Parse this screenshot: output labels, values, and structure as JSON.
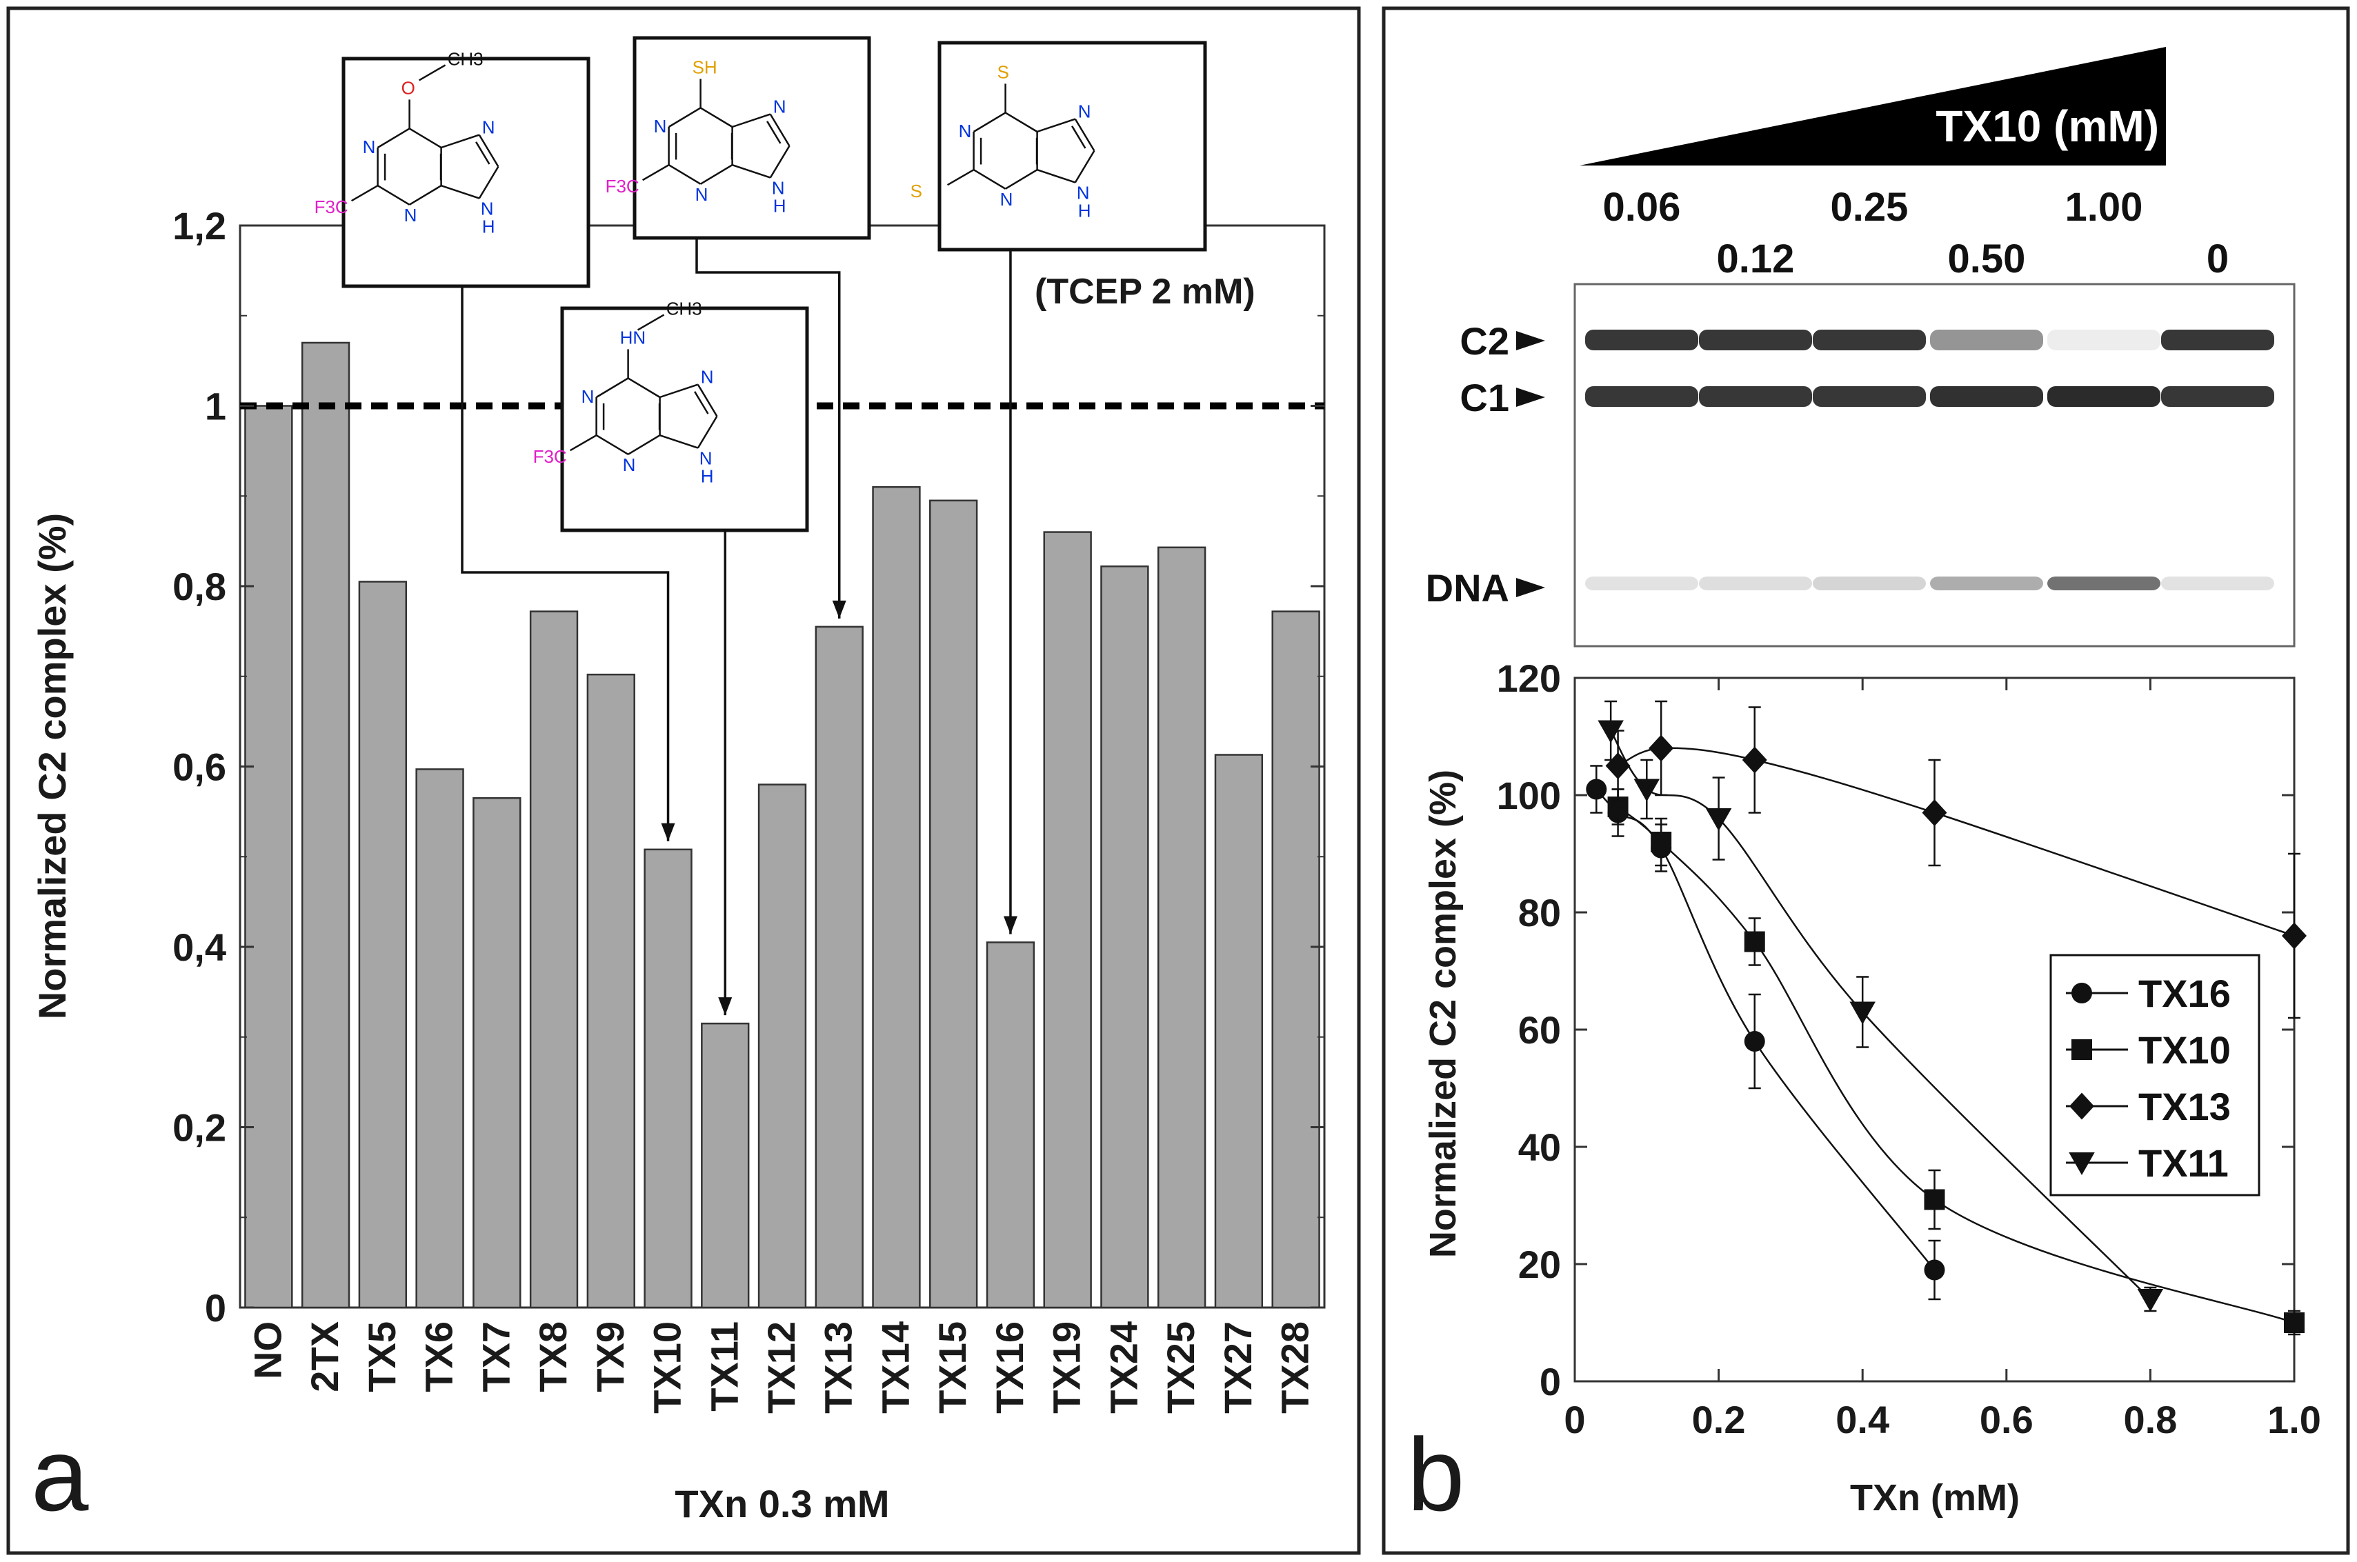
{
  "chart_data": [
    {
      "type": "bar",
      "panel_label": "a",
      "categories": [
        "NO",
        "2TX",
        "TX5",
        "TX6",
        "TX7",
        "TX8",
        "TX9",
        "TX10",
        "TX11",
        "TX12",
        "TX13",
        "TX14",
        "TX15",
        "TX16",
        "TX19",
        "TX24",
        "TX25",
        "TX27",
        "TX28"
      ],
      "values": [
        1.0,
        1.07,
        0.805,
        0.597,
        0.565,
        0.772,
        0.702,
        0.508,
        0.315,
        0.58,
        0.755,
        0.91,
        0.895,
        0.405,
        0.86,
        0.822,
        0.843,
        0.613,
        0.772
      ],
      "xlabel": "TXn 0.3 mM",
      "ylabel": "Normalized C2 complex (%)",
      "ylim": [
        0,
        1.2
      ],
      "yticks": [
        "0",
        "0,2",
        "0,4",
        "0,6",
        "0,8",
        "1",
        "1,2"
      ],
      "reference_line": 1,
      "annotation": "(TCEP 2 mM)",
      "bar_color": "#a6a6a6",
      "structures": [
        {
          "target": "TX10",
          "top": "O",
          "top_sub": "CH3",
          "r2": "F3C"
        },
        {
          "target": "TX11",
          "top": "HN",
          "top_sub": "CH3",
          "r2": "F3C"
        },
        {
          "target": "TX13",
          "top": "SH",
          "r2": "F3C"
        },
        {
          "target": "TX16",
          "top": "S",
          "r2": "S"
        }
      ]
    },
    {
      "type": "gel",
      "title": "TX10 (mM)",
      "concentrations_top": [
        "0.06",
        "0.25",
        "1.00"
      ],
      "concentrations_bottom": [
        "0.12",
        "0.50",
        "0"
      ],
      "bands": [
        "C2",
        "C1",
        "DNA"
      ],
      "c2_intensity": [
        0.85,
        0.85,
        0.85,
        0.45,
        0.08,
        0.85
      ],
      "c1_intensity": [
        0.85,
        0.85,
        0.85,
        0.88,
        0.9,
        0.85
      ],
      "dna_intensity": [
        0.12,
        0.14,
        0.18,
        0.35,
        0.6,
        0.12
      ]
    },
    {
      "type": "line",
      "panel_label": "b",
      "xlabel": "TXn (mM)",
      "ylabel": "Normalized C2 complex (%)",
      "xlim": [
        0,
        1.0
      ],
      "ylim": [
        0,
        120
      ],
      "xticks": [
        "0",
        "0.2",
        "0.4",
        "0.6",
        "0.8",
        "1.0"
      ],
      "yticks": [
        "0",
        "20",
        "40",
        "60",
        "80",
        "100",
        "120"
      ],
      "legend_position": "center-right",
      "series": [
        {
          "name": "TX16",
          "marker": "circle",
          "x": [
            0.03,
            0.06,
            0.12,
            0.25,
            0.5
          ],
          "y": [
            101,
            97,
            91,
            58,
            19
          ],
          "err": [
            4,
            4,
            4,
            8,
            5
          ]
        },
        {
          "name": "TX10",
          "marker": "square",
          "x": [
            0.06,
            0.12,
            0.25,
            0.5,
            1.0
          ],
          "y": [
            98,
            92,
            75,
            31,
            10
          ],
          "err": [
            3,
            4,
            4,
            5,
            2
          ]
        },
        {
          "name": "TX13",
          "marker": "diamond",
          "x": [
            0.06,
            0.12,
            0.25,
            0.5,
            1.0
          ],
          "y": [
            105,
            108,
            106,
            97,
            76
          ],
          "err": [
            6,
            8,
            9,
            9,
            14
          ]
        },
        {
          "name": "TX11",
          "marker": "triangle-down",
          "x": [
            0.05,
            0.1,
            0.2,
            0.4,
            0.8
          ],
          "y": [
            111,
            101,
            96,
            63,
            14
          ],
          "err": [
            5,
            5,
            7,
            6,
            2
          ]
        }
      ]
    }
  ]
}
